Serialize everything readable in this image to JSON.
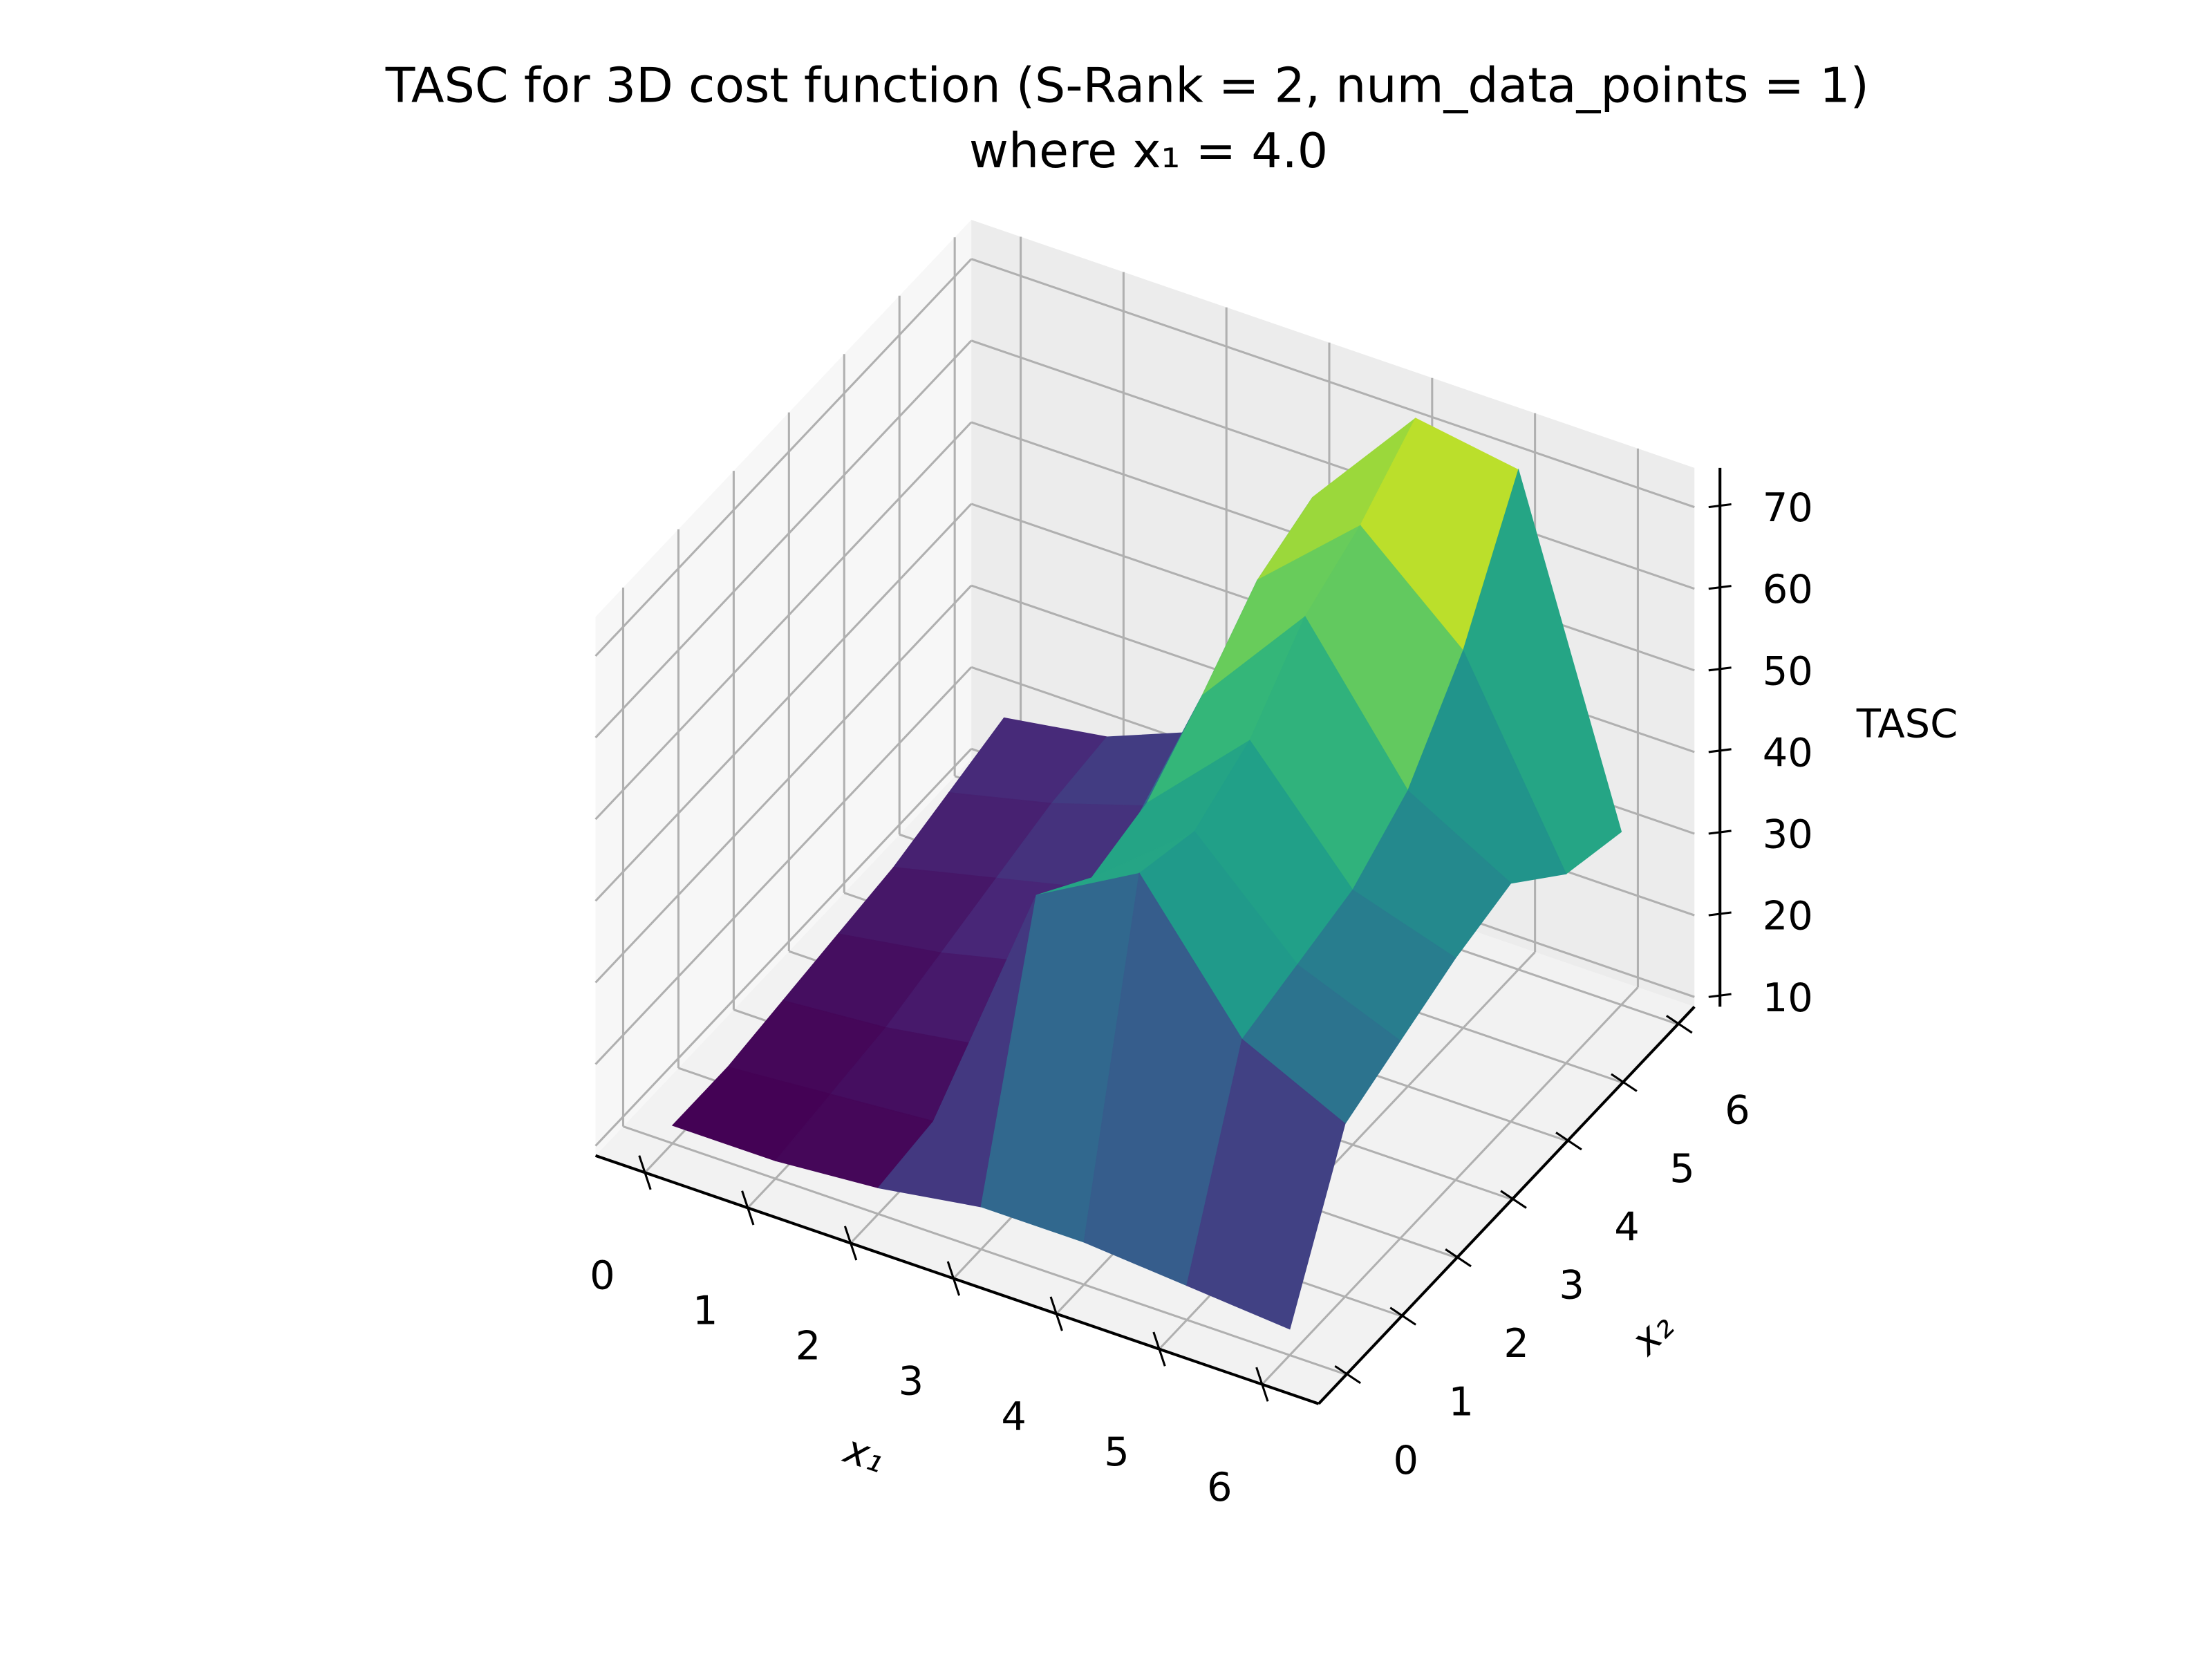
{
  "chart_data": {
    "type": "surface",
    "title": "TASC for 3D cost function (S-Rank = 2, num_data_points = 1)",
    "subtitle": "where x₁ = 4.0",
    "xlabel": "x₁",
    "ylabel": "x₂",
    "zlabel": "TASC",
    "x": [
      0,
      1,
      2,
      3,
      4,
      5,
      6
    ],
    "y": [
      0,
      1,
      2,
      3,
      4,
      5,
      6
    ],
    "z": [
      [
        11,
        11,
        12,
        13,
        14,
        16,
        18
      ],
      [
        11,
        12,
        13,
        15,
        17,
        19,
        20
      ],
      [
        12,
        13,
        15,
        18,
        20,
        23,
        25
      ],
      [
        14,
        45,
        40,
        42,
        48,
        55,
        58
      ],
      [
        14,
        52,
        50,
        54,
        62,
        66,
        72
      ],
      [
        13,
        36,
        38,
        40,
        45,
        55,
        70
      ],
      [
        12,
        30,
        33,
        36,
        38,
        32,
        30
      ]
    ],
    "colormap": "viridis",
    "xlim": [
      -0.48,
      6.55
    ],
    "ylim": [
      -0.5,
      6.3
    ],
    "zlim": [
      8.8,
      74.8
    ],
    "xticks": [
      0,
      1,
      2,
      3,
      4,
      5,
      6
    ],
    "yticks": [
      0,
      1,
      2,
      3,
      4,
      5,
      6
    ],
    "zticks": [
      10,
      20,
      30,
      40,
      50,
      60,
      70
    ],
    "grid": true
  }
}
